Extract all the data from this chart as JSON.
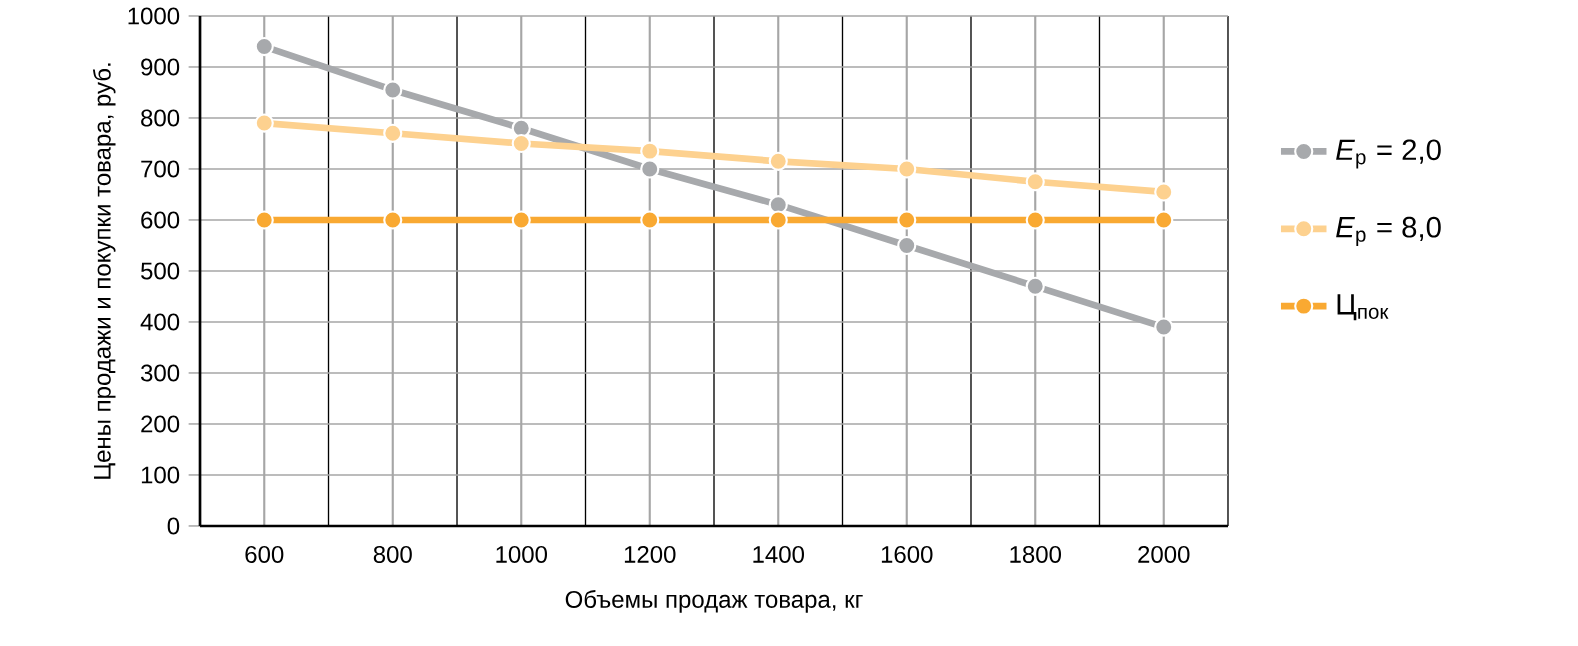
{
  "chart_data": {
    "type": "line",
    "xlabel": "Объемы продаж товара, кг",
    "ylabel": "Цены продажи и покупки товара, руб.",
    "categories": [
      "600",
      "800",
      "1000",
      "1200",
      "1400",
      "1600",
      "1800",
      "2000"
    ],
    "series": [
      {
        "name": "*E*$_{p}$ = 2,0",
        "color": "#a7a9ac",
        "values": [
          940,
          855,
          780,
          700,
          630,
          550,
          470,
          390
        ]
      },
      {
        "name": "*E*$_{p}$ = 8,0",
        "color": "#fdd18f",
        "values": [
          790,
          770,
          750,
          735,
          715,
          700,
          675,
          655
        ]
      },
      {
        "name": "Ц$_{пок}$",
        "color": "#f9a932",
        "values": [
          600,
          600,
          600,
          600,
          600,
          600,
          600,
          600
        ]
      }
    ],
    "ylim": [
      0,
      1000
    ],
    "yticks": [
      0,
      100,
      200,
      300,
      400,
      500,
      600,
      700,
      800,
      900,
      1000
    ],
    "grid": true,
    "legend": "right",
    "marker": "circle",
    "line_style": "solid"
  }
}
